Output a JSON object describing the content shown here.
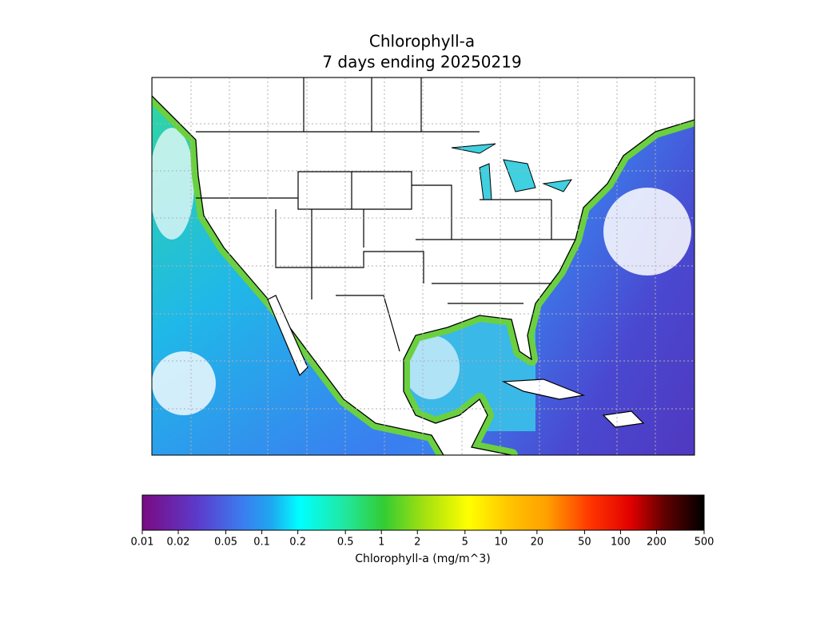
{
  "header": {
    "title": "Chlorophyll-a",
    "subtitle": "7 days ending 20250219"
  },
  "colorbar": {
    "scale": "log",
    "lim": [
      0.01,
      500
    ],
    "ticks": [
      0.01,
      0.02,
      0.05,
      0.1,
      0.2,
      0.5,
      1,
      2,
      5,
      10,
      20,
      50,
      100,
      200,
      500
    ],
    "label": "Chlorophyll-a (mg/m^3)"
  }
}
